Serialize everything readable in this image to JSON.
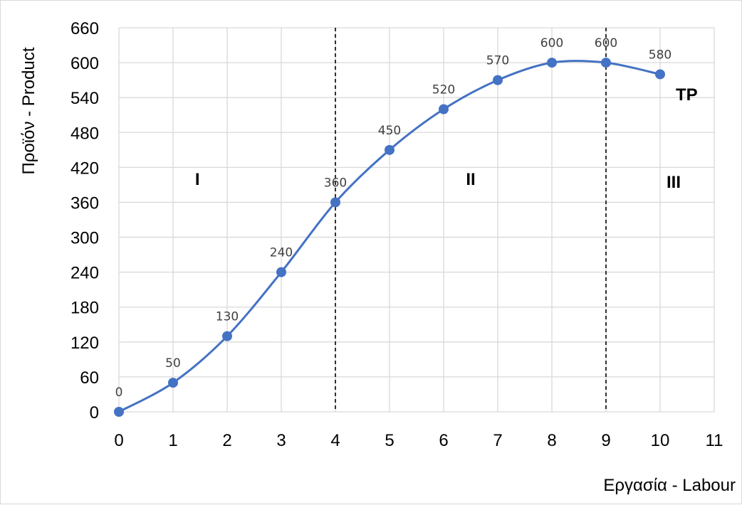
{
  "chart_data": {
    "type": "line",
    "title": "",
    "xlabel": "Εργασία - Labour",
    "ylabel": "Προϊόν - Product",
    "xlim": [
      0,
      11
    ],
    "ylim": [
      0,
      660
    ],
    "x_ticks": [
      0,
      1,
      2,
      3,
      4,
      5,
      6,
      7,
      8,
      9,
      10,
      11
    ],
    "y_ticks": [
      0,
      60,
      120,
      180,
      240,
      300,
      360,
      420,
      480,
      540,
      600,
      660
    ],
    "grid": true,
    "smooth": true,
    "series": [
      {
        "name": "TP",
        "color": "#4472c4",
        "x": [
          0,
          1,
          2,
          3,
          4,
          5,
          6,
          7,
          8,
          9,
          10
        ],
        "values": [
          0,
          50,
          130,
          240,
          360,
          450,
          520,
          570,
          600,
          600,
          580
        ],
        "data_labels": [
          "0",
          "50",
          "130",
          "240",
          "360",
          "450",
          "520",
          "570",
          "600",
          "600",
          "580"
        ]
      }
    ],
    "dividers_x": [
      4,
      9
    ],
    "regions": [
      {
        "label": "I",
        "x": 1.45,
        "y": 390
      },
      {
        "label": "II",
        "x": 6.5,
        "y": 390
      },
      {
        "label": "III",
        "x": 10.25,
        "y": 385
      }
    ]
  }
}
